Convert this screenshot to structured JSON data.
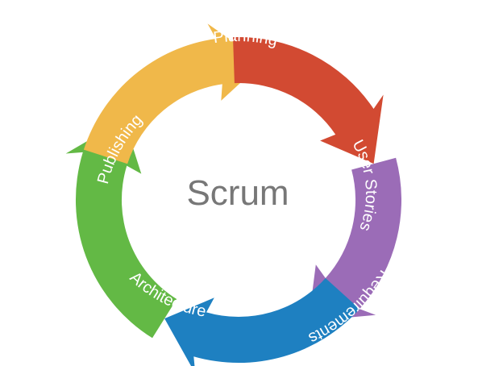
{
  "center_label": "Scrum",
  "segments": [
    {
      "key": "planning",
      "label": "Planning",
      "color": "#63b945"
    },
    {
      "key": "user-stories",
      "label": "User Stories",
      "color": "#f0b84a"
    },
    {
      "key": "requirements",
      "label": "Requirements",
      "color": "#d24a32"
    },
    {
      "key": "architecture",
      "label": "Architecture",
      "color": "#9b6cb7"
    },
    {
      "key": "publishing",
      "label": "Publishing",
      "color": "#1e80c1"
    }
  ]
}
